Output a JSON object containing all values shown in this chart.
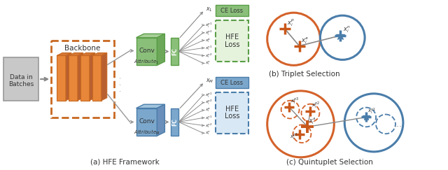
{
  "fig_width": 6.4,
  "fig_height": 2.43,
  "bg_color": "#ffffff",
  "orange_color": "#E8873A",
  "orange_dark": "#C96A20",
  "orange_edge": "#C86820",
  "green_color": "#8ABF7A",
  "green_dark": "#5D9E4A",
  "green_edge": "#5A9E47",
  "blue_color": "#7BA7CC",
  "blue_dark": "#4A7DAA",
  "blue_edge": "#4A7DAA",
  "gray_color": "#AAAAAA",
  "gray_dark": "#888888",
  "arrow_color": "#888888",
  "text_color": "#333333",
  "title_a": "(a) HFE Framework",
  "title_b": "(b) Triplet Selection",
  "title_c": "(c) Quintuplet Selection"
}
